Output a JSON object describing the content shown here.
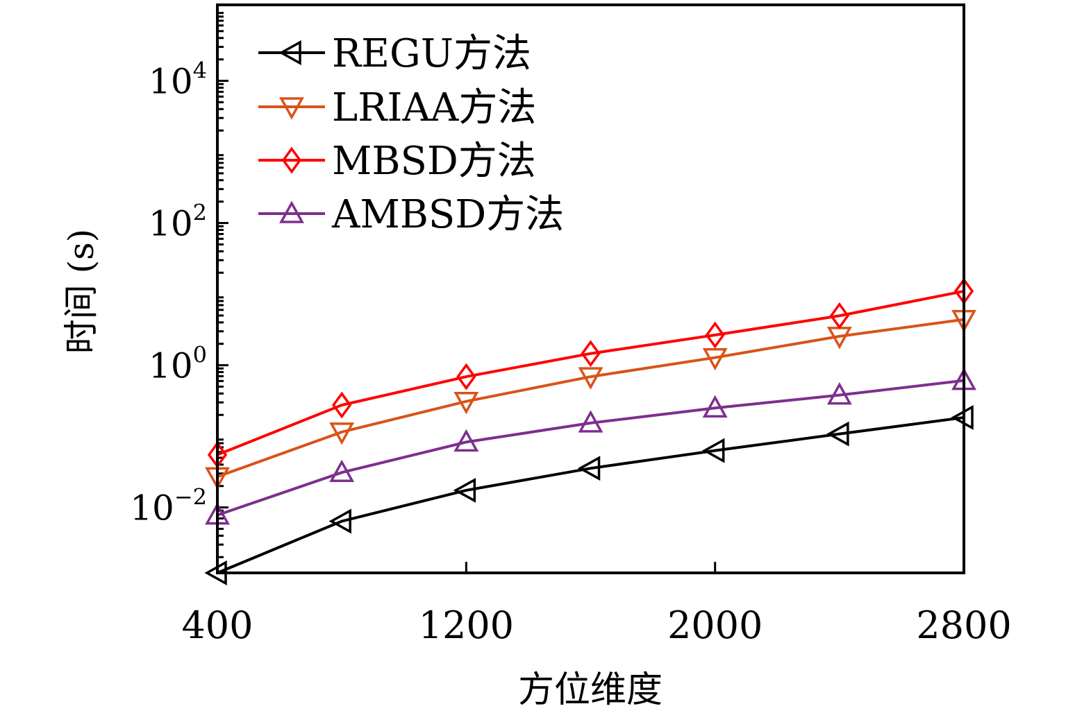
{
  "chart_data": {
    "type": "line",
    "title": "",
    "xlabel": "方位维度",
    "ylabel": "时间 (s)",
    "yscale": "log",
    "xlim": [
      400,
      2800
    ],
    "ylim": [
      0.0012,
      117000
    ],
    "grid": false,
    "legend_position": "top-left",
    "x": [
      400,
      800,
      1200,
      1600,
      2000,
      2400,
      2800
    ],
    "xticks": [
      400,
      1200,
      2000,
      2800
    ],
    "xtick_labels": [
      "400",
      "1200",
      "2000",
      "2800"
    ],
    "yticks": [
      {
        "value": 0.01,
        "base": "10",
        "exp": "−2"
      },
      {
        "value": 1,
        "base": "10",
        "exp": "0"
      },
      {
        "value": 100,
        "base": "10",
        "exp": "2"
      },
      {
        "value": 10000,
        "base": "10",
        "exp": "4"
      }
    ],
    "series": [
      {
        "name": "REGU方法",
        "color": "#000000",
        "marker": "triangle-left",
        "values": [
          0.0012,
          0.0064,
          0.0174,
          0.0355,
          0.063,
          0.108,
          0.184
        ]
      },
      {
        "name": "LRIAA方法",
        "color": "#D95319",
        "marker": "triangle-down",
        "values": [
          0.027,
          0.115,
          0.31,
          0.69,
          1.28,
          2.55,
          4.4
        ]
      },
      {
        "name": "MBSD方法",
        "color": "#FF0000",
        "marker": "diamond",
        "values": [
          0.055,
          0.275,
          0.69,
          1.46,
          2.66,
          4.96,
          11.0
        ]
      },
      {
        "name": "AMBSD方法",
        "color": "#7E2F8E",
        "marker": "triangle-up",
        "values": [
          0.0078,
          0.031,
          0.083,
          0.154,
          0.25,
          0.38,
          0.61
        ]
      }
    ]
  }
}
